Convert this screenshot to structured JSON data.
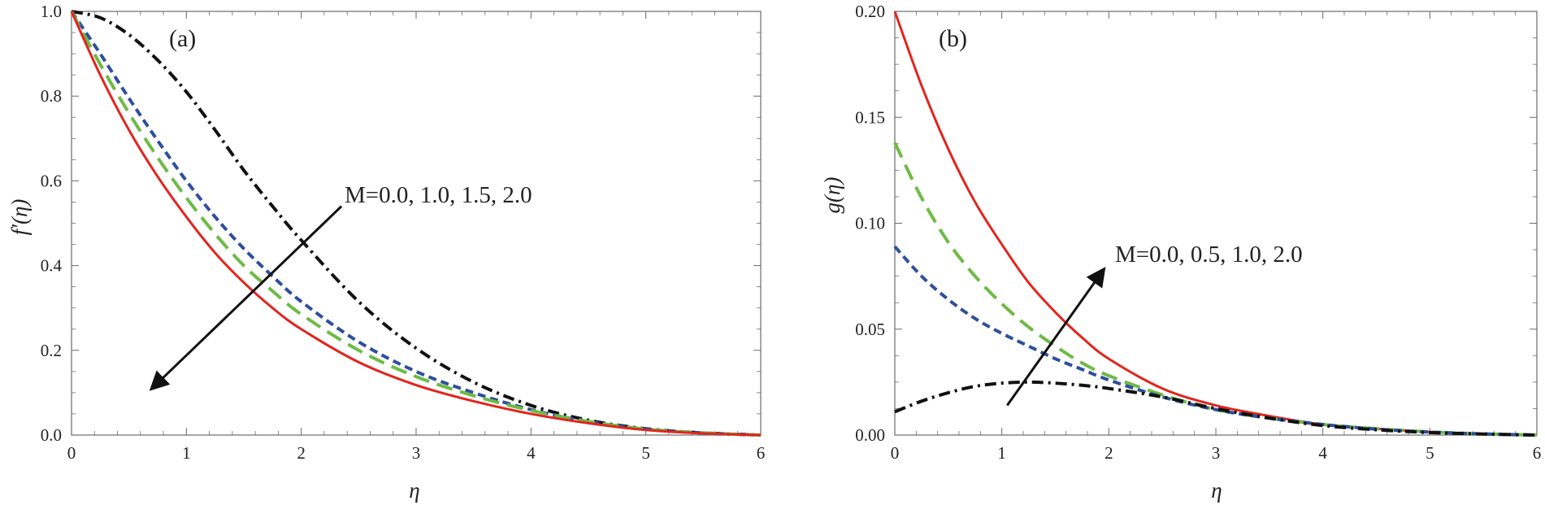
{
  "colors": {
    "red": "#e3241e",
    "green": "#6dbb45",
    "blue": "#2e4f9e",
    "black": "#111111",
    "axis": "#6b6b6b"
  },
  "chart_data": [
    {
      "type": "line",
      "panel_label": "(a)",
      "xlabel": "η",
      "ylabel": "f′(η)",
      "xlim": [
        0,
        6
      ],
      "ylim": [
        0,
        1.0
      ],
      "x_ticks": [
        0,
        1,
        2,
        3,
        4,
        5,
        6
      ],
      "x_tick_labels": [
        "0",
        "1",
        "2",
        "3",
        "4",
        "5",
        "6"
      ],
      "y_ticks": [
        0,
        0.2,
        0.4,
        0.6,
        0.8,
        1.0
      ],
      "y_tick_labels": [
        "0.0",
        "0.2",
        "0.4",
        "0.6",
        "0.8",
        "1.0"
      ],
      "annotation": "M=0.0, 1.0, 1.5, 2.0",
      "arrow": {
        "from": [
          2.35,
          0.54
        ],
        "to": [
          0.7,
          0.11
        ]
      },
      "series": [
        {
          "name": "M=0.0",
          "color": "black",
          "style": "dashdot",
          "x": [
            0,
            0.25,
            0.5,
            0.75,
            1,
            1.25,
            1.5,
            1.75,
            2,
            2.5,
            3,
            3.5,
            4,
            4.5,
            5,
            5.5,
            6
          ],
          "y": [
            1.0,
            0.985,
            0.945,
            0.885,
            0.81,
            0.72,
            0.625,
            0.54,
            0.46,
            0.315,
            0.205,
            0.125,
            0.07,
            0.035,
            0.015,
            0.005,
            0.0
          ]
        },
        {
          "name": "M=1.0",
          "color": "blue",
          "style": "dashed",
          "x": [
            0,
            0.25,
            0.5,
            0.75,
            1,
            1.25,
            1.5,
            1.75,
            2,
            2.5,
            3,
            3.5,
            4,
            4.5,
            5,
            5.5,
            6
          ],
          "y": [
            1.0,
            0.9,
            0.795,
            0.695,
            0.6,
            0.515,
            0.44,
            0.375,
            0.315,
            0.22,
            0.15,
            0.1,
            0.06,
            0.032,
            0.014,
            0.005,
            0.0
          ]
        },
        {
          "name": "M=1.5",
          "color": "green",
          "style": "longdash",
          "x": [
            0,
            0.25,
            0.5,
            0.75,
            1,
            1.25,
            1.5,
            1.75,
            2,
            2.5,
            3,
            3.5,
            4,
            4.5,
            5,
            5.5,
            6
          ],
          "y": [
            1.0,
            0.875,
            0.76,
            0.655,
            0.56,
            0.475,
            0.4,
            0.34,
            0.285,
            0.2,
            0.138,
            0.093,
            0.058,
            0.032,
            0.014,
            0.005,
            0.0
          ]
        },
        {
          "name": "M=2.0",
          "color": "red",
          "style": "solid",
          "x": [
            0,
            0.25,
            0.5,
            0.75,
            1,
            1.25,
            1.5,
            1.75,
            2,
            2.5,
            3,
            3.5,
            4,
            4.5,
            5,
            5.5,
            6
          ],
          "y": [
            1.0,
            0.85,
            0.72,
            0.61,
            0.515,
            0.43,
            0.36,
            0.3,
            0.25,
            0.172,
            0.118,
            0.08,
            0.05,
            0.028,
            0.012,
            0.004,
            0.0
          ]
        }
      ]
    },
    {
      "type": "line",
      "panel_label": "(b)",
      "xlabel": "η",
      "ylabel": "g(η)",
      "xlim": [
        0,
        6
      ],
      "ylim": [
        0,
        0.2
      ],
      "x_ticks": [
        0,
        1,
        2,
        3,
        4,
        5,
        6
      ],
      "x_tick_labels": [
        "0",
        "1",
        "2",
        "3",
        "4",
        "5",
        "6"
      ],
      "y_ticks": [
        0,
        0.05,
        0.1,
        0.15,
        0.2
      ],
      "y_tick_labels": [
        "0.00",
        "0.05",
        "0.10",
        "0.15",
        "0.20"
      ],
      "annotation": "M=0.0, 0.5, 1.0, 2.0",
      "arrow": {
        "from": [
          1.05,
          0.014
        ],
        "to": [
          1.95,
          0.078
        ]
      },
      "series": [
        {
          "name": "M=0.0",
          "color": "red",
          "style": "solid",
          "x": [
            0,
            0.25,
            0.5,
            0.75,
            1,
            1.25,
            1.5,
            1.75,
            2,
            2.5,
            3,
            3.5,
            4,
            4.5,
            5,
            5.5,
            6
          ],
          "y": [
            0.2,
            0.165,
            0.135,
            0.11,
            0.09,
            0.072,
            0.058,
            0.046,
            0.036,
            0.022,
            0.014,
            0.009,
            0.005,
            0.003,
            0.0015,
            0.0006,
            0.0
          ]
        },
        {
          "name": "M=0.5",
          "color": "green",
          "style": "longdash",
          "x": [
            0,
            0.25,
            0.5,
            0.75,
            1,
            1.25,
            1.5,
            1.75,
            2,
            2.5,
            3,
            3.5,
            4,
            4.5,
            5,
            5.5,
            6
          ],
          "y": [
            0.138,
            0.112,
            0.091,
            0.075,
            0.062,
            0.051,
            0.042,
            0.034,
            0.028,
            0.019,
            0.012,
            0.008,
            0.005,
            0.003,
            0.0015,
            0.0006,
            0.0
          ]
        },
        {
          "name": "M=1.0",
          "color": "blue",
          "style": "dashed",
          "x": [
            0,
            0.25,
            0.5,
            0.75,
            1,
            1.25,
            1.5,
            1.75,
            2,
            2.5,
            3,
            3.5,
            4,
            4.5,
            5,
            5.5,
            6
          ],
          "y": [
            0.089,
            0.075,
            0.064,
            0.055,
            0.048,
            0.042,
            0.036,
            0.031,
            0.026,
            0.018,
            0.012,
            0.008,
            0.005,
            0.0028,
            0.0014,
            0.0005,
            0.0
          ]
        },
        {
          "name": "M=2.0",
          "color": "black",
          "style": "dashdot",
          "x": [
            0,
            0.25,
            0.5,
            0.75,
            1,
            1.25,
            1.5,
            1.75,
            2,
            2.5,
            3,
            3.5,
            4,
            4.5,
            5,
            5.5,
            6
          ],
          "y": [
            0.011,
            0.016,
            0.02,
            0.023,
            0.0245,
            0.025,
            0.0245,
            0.0235,
            0.022,
            0.018,
            0.0125,
            0.008,
            0.0045,
            0.0025,
            0.0012,
            0.0005,
            0.0
          ]
        }
      ]
    }
  ]
}
